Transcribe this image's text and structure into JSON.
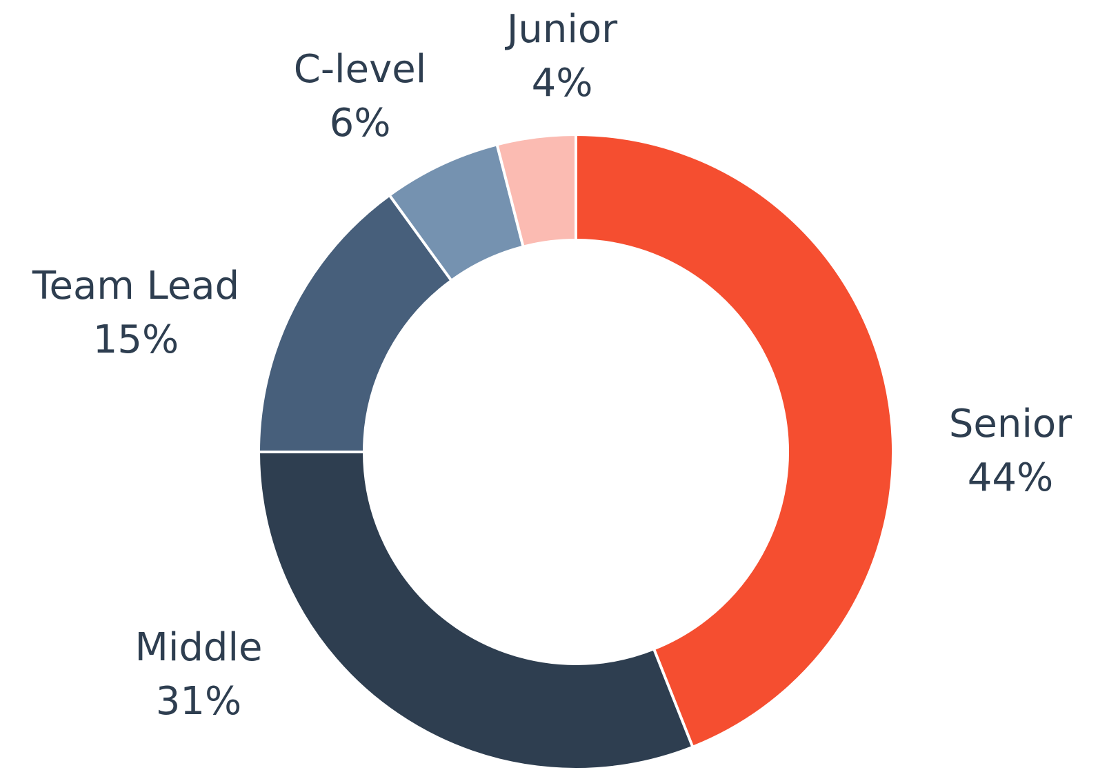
{
  "chart_data": {
    "type": "donut",
    "categories": [
      "Senior",
      "Middle",
      "Team Lead",
      "C-level",
      "Junior"
    ],
    "values": [
      44,
      31,
      15,
      6,
      4
    ],
    "value_labels": [
      "44%",
      "31%",
      "15%",
      "6%",
      "4%"
    ],
    "colors": [
      "#f54e30",
      "#2e3e50",
      "#475f7b",
      "#7592b0",
      "#fbbbb2"
    ]
  }
}
